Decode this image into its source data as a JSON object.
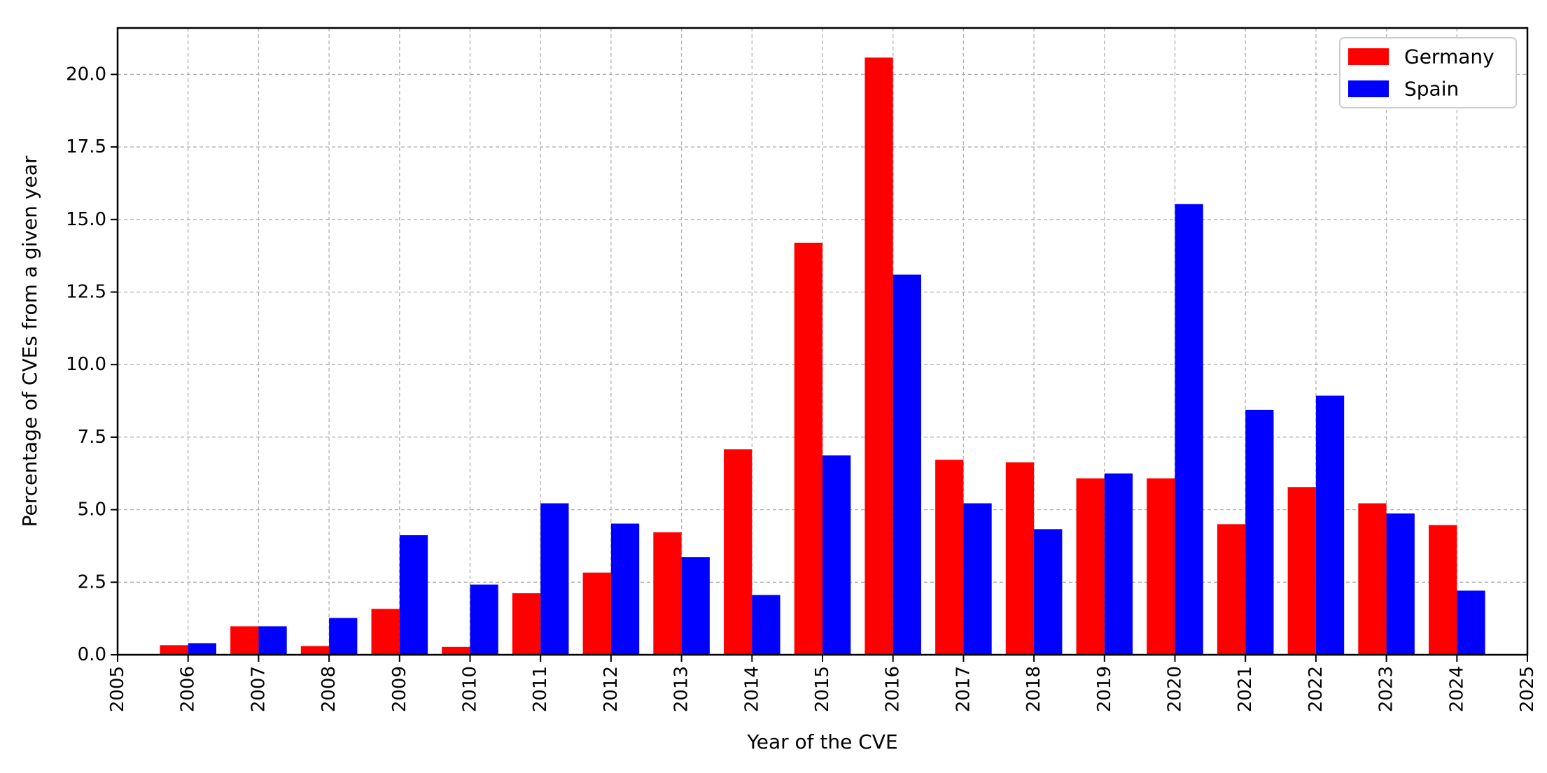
{
  "chart_data": {
    "type": "bar",
    "title": "",
    "xlabel": "Year of the CVE",
    "ylabel": "Percentage of CVEs from a given year",
    "xlim": [
      2005,
      2025
    ],
    "ylim": [
      0,
      21.6
    ],
    "x_ticks": [
      "2005",
      "2006",
      "2007",
      "2008",
      "2009",
      "2010",
      "2011",
      "2012",
      "2013",
      "2014",
      "2015",
      "2016",
      "2017",
      "2018",
      "2019",
      "2020",
      "2021",
      "2022",
      "2023",
      "2024",
      "2025"
    ],
    "y_ticks": [
      "0.0",
      "2.5",
      "5.0",
      "7.5",
      "10.0",
      "12.5",
      "15.0",
      "17.5",
      "20.0"
    ],
    "grid": true,
    "legend_position": "top-right",
    "categories": [
      2006,
      2007,
      2008,
      2009,
      2010,
      2011,
      2012,
      2013,
      2014,
      2015,
      2016,
      2017,
      2018,
      2019,
      2020,
      2021,
      2022,
      2023,
      2024
    ],
    "series": [
      {
        "name": "Germany",
        "color": "#ff0000",
        "values": [
          0.33,
          0.98,
          0.3,
          1.58,
          0.27,
          2.12,
          2.83,
          4.22,
          7.08,
          14.2,
          20.58,
          6.72,
          6.63,
          6.08,
          6.08,
          4.5,
          5.78,
          5.22,
          4.47
        ]
      },
      {
        "name": "Spain",
        "color": "#0000ff",
        "values": [
          0.4,
          0.98,
          1.27,
          4.12,
          2.42,
          5.22,
          4.52,
          3.37,
          2.06,
          6.87,
          13.1,
          5.22,
          4.33,
          6.25,
          15.53,
          8.44,
          8.93,
          4.87,
          2.21
        ]
      }
    ]
  }
}
